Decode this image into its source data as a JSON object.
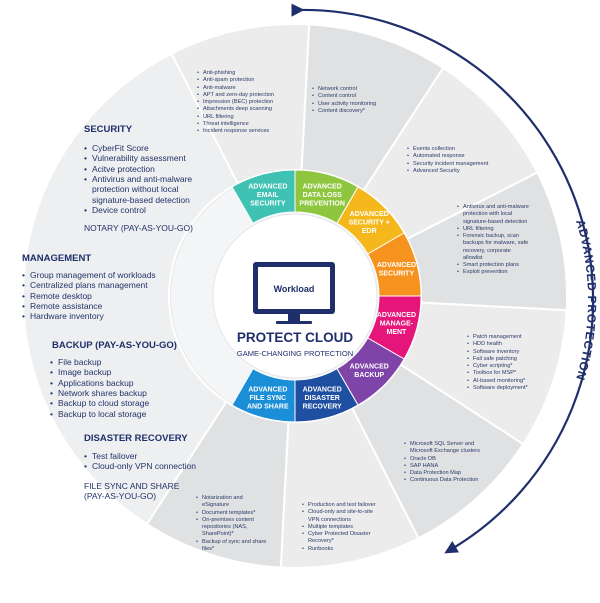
{
  "arc_label": "ADVANCED PROTECTION",
  "center": {
    "screen_label": "Workload",
    "title": "PROTECT CLOUD",
    "subtitle": "GAME-CHANGING PROTECTION"
  },
  "left_panel": {
    "security": {
      "title": "SECURITY",
      "items": [
        "CyberFit Score",
        "Vulnerability assessment",
        "Acitve protection",
        "Antivirus and anti-malware protection without local signature-based detection",
        "Device control"
      ]
    },
    "notary": "NOTARY (PAY-AS-YOU-GO)",
    "management": {
      "title": "MANAGEMENT",
      "items": [
        "Group management of workloads",
        "Centralized plans management",
        "Remote desktop",
        "Remote assistance",
        "Hardware inventory"
      ]
    },
    "backup": {
      "title": "BACKUP (PAY-AS-YOU-GO)",
      "items": [
        "File backup",
        "Image backup",
        "Applications backup",
        "Network shares backup",
        "Backup to cloud storage",
        "Backup to local storage"
      ]
    },
    "disaster": {
      "title": "DISASTER RECOVERY",
      "items": [
        "Test failover",
        "Cloud-only VPN connection"
      ]
    },
    "filesync": "FILE SYNC AND SHARE (PAY-AS-YOU-GO)"
  },
  "segments": [
    {
      "key": "email",
      "label": "ADVANCED EMAIL SECURITY",
      "color": "#3fc2b4",
      "items": [
        "Anti-phishing",
        "Anti-spam protection",
        "Anti-malware",
        "APT and zero-day protection",
        "Impression (BEC) protection",
        "Attachments deep scanning",
        "URL filtering",
        "Threat intelligence",
        "Incident response services"
      ]
    },
    {
      "key": "dlp",
      "label": "ADVANCED DATA LOSS PREVENTION",
      "color": "#8ec63f",
      "items": [
        "Network control",
        "Content control",
        "User activity monitoring",
        "Content discovery*"
      ]
    },
    {
      "key": "edr",
      "label": "ADVANCED SECURITY + EDR",
      "color": "#f5b81c",
      "items": [
        "Events collection",
        "Automated response",
        "Security incident management",
        "Advanced Security"
      ]
    },
    {
      "key": "sec",
      "label": "ADVANCED SECURITY",
      "color": "#f6921e",
      "items": [
        "Antivirus and anti-malware protection with local signature-based detection",
        "URL filtering",
        "Forensic backup, scan backups for malware, safe recovery, corporate allowlist",
        "Smart protection plans",
        "Exploit prevention"
      ]
    },
    {
      "key": "mgmt",
      "label": "ADVANCED MANAGE- MENT",
      "color": "#e6157a",
      "items": [
        "Patch management",
        "HDD health",
        "Software inventory",
        "Fail safe patching",
        "Cyber scripting*",
        "Toolbox for MSP*",
        "AI-based monitoring*",
        "Software deployment*"
      ]
    },
    {
      "key": "backup",
      "label": "ADVANCED BACKUP",
      "color": "#7f44a8",
      "items": [
        "Microsoft SQL Server and Microsoft Exchange clusters",
        "Oracle DB",
        "SAP HANA",
        "Data Protection Map",
        "Continuous Data Protection"
      ]
    },
    {
      "key": "dr",
      "label": "ADVANCED DISASTER RECOVERY",
      "color": "#1e4fa0",
      "items": [
        "Production and test failover",
        "Cloud-only and site-to-site VPN connections",
        "Multiple templates",
        "Cyber Protected Disaster Recovery*",
        "Runbooks"
      ]
    },
    {
      "key": "fss",
      "label": "ADVANCED FILE SYNC AND SHARE",
      "color": "#1a8ed6",
      "items": [
        "Notarization and eSignature",
        "Document templates*",
        "On-premises content repositories (NAS, SharePoint)*",
        "Backup of sync and share files*"
      ]
    }
  ],
  "colors": {
    "outer_ring": "#e8e9ea",
    "outer_ring_dark": "#d6d8da",
    "navy": "#1f2f6b",
    "arc": "#1f2f6b"
  }
}
